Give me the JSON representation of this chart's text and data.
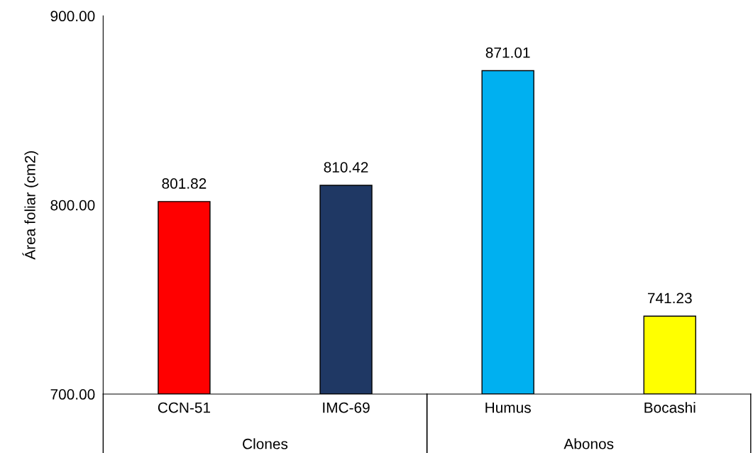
{
  "chart_data": {
    "type": "bar",
    "ylabel": "Área foliar (cm2)",
    "categories": [
      "CCN-51",
      "IMC-69",
      "Humus",
      "Bocashi"
    ],
    "values": [
      801.82,
      810.42,
      871.01,
      741.23
    ],
    "colors": [
      "#ff0000",
      "#1f3864",
      "#00b0f0",
      "#ffff00"
    ],
    "ylim": [
      700,
      900
    ],
    "yticks": [
      {
        "value": 700,
        "label": "700.00"
      },
      {
        "value": 800,
        "label": "800.00"
      },
      {
        "value": 900,
        "label": "900.00"
      }
    ],
    "data_labels": true,
    "grid": false,
    "legend": false,
    "annotations": [
      "Clones",
      "Abonos"
    ]
  }
}
